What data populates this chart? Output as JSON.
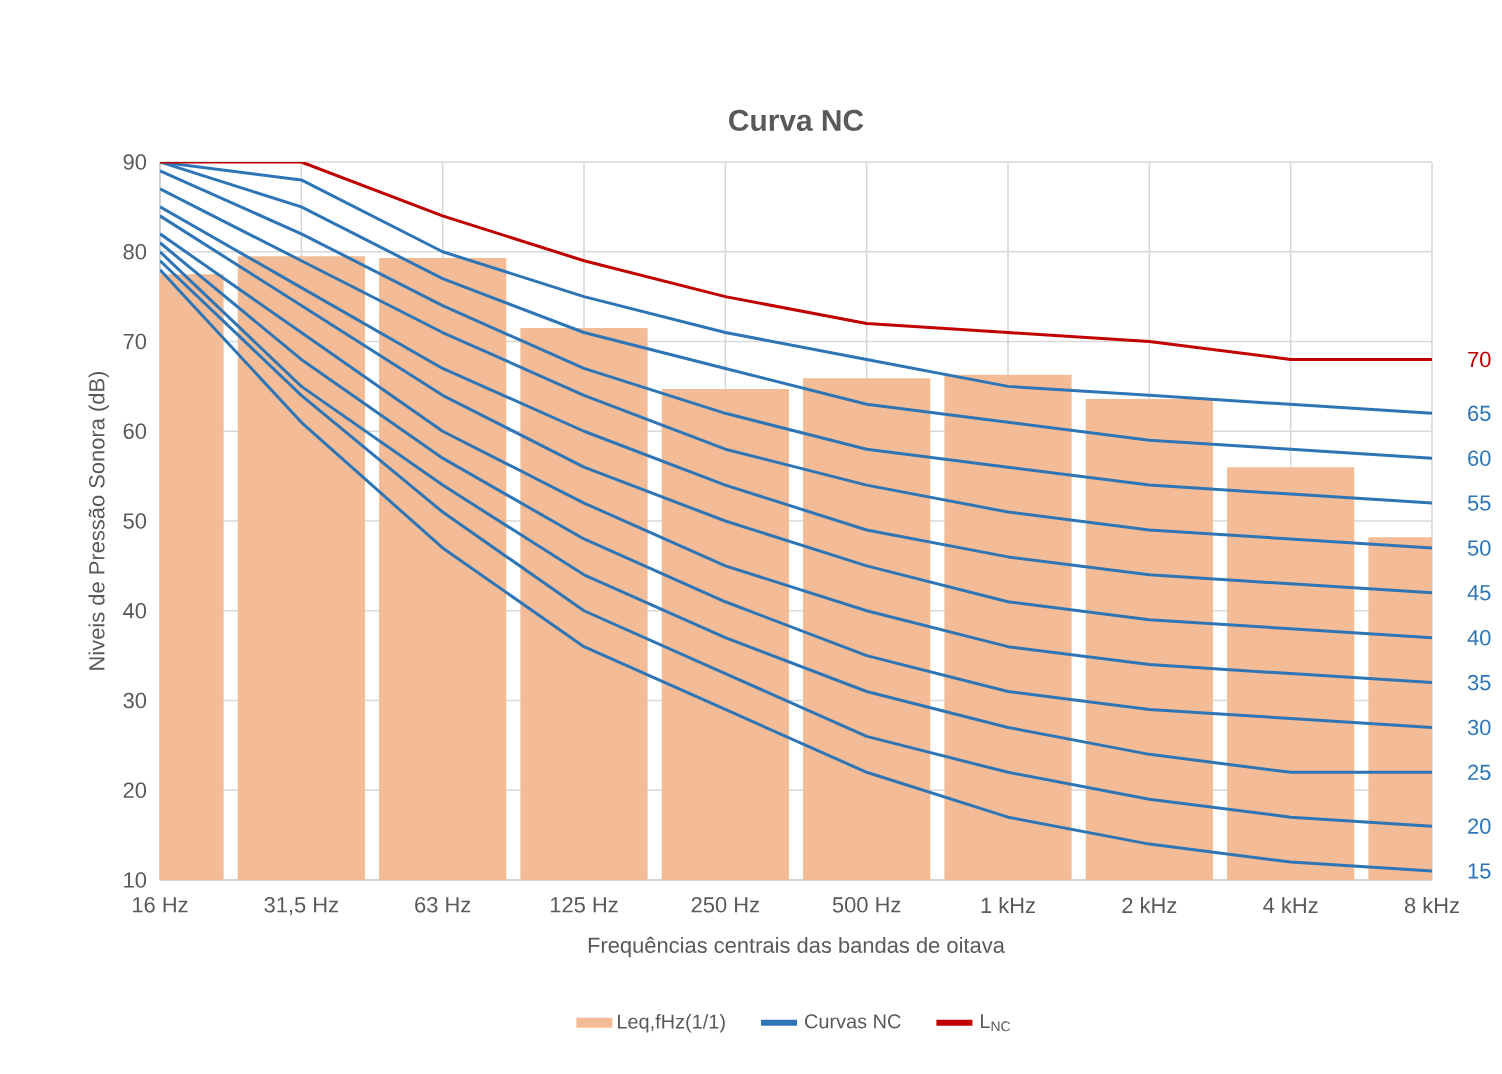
{
  "chart_data": {
    "type": "bar",
    "title": "Curva NC",
    "xlabel": "Frequências centrais das bandas de oitava",
    "ylabel": "Niveis de Pressão Sonora (dB)",
    "categories": [
      "16 Hz",
      "31,5 Hz",
      "63 Hz",
      "125 Hz",
      "250 Hz",
      "500 Hz",
      "1 kHz",
      "2 kHz",
      "4 kHz",
      "8 kHz"
    ],
    "series": [
      {
        "name": "Leq,fHz(1/1)",
        "color": "#f4bc96",
        "values": [
          77.5,
          79.5,
          79.3,
          71.5,
          64.7,
          65.9,
          66.3,
          63.6,
          56.0,
          48.2
        ]
      },
      {
        "name": "Curvas NC",
        "type": "line",
        "color": "#2e75b6",
        "values": [
          78,
          61,
          47,
          36,
          29,
          22,
          17,
          14,
          12,
          11
        ]
      },
      {
        "type": "line",
        "color": "#2e75b6",
        "values": [
          79,
          64,
          51,
          40,
          33,
          26,
          22,
          19,
          17,
          16
        ]
      },
      {
        "type": "line",
        "color": "#2e75b6",
        "values": [
          80,
          65,
          54,
          44,
          37,
          31,
          27,
          24,
          22,
          22
        ]
      },
      {
        "type": "line",
        "color": "#2e75b6",
        "values": [
          81,
          68,
          57,
          48,
          41,
          35,
          31,
          29,
          28,
          27
        ]
      },
      {
        "type": "line",
        "color": "#2e75b6",
        "values": [
          82,
          71,
          60,
          52,
          45,
          40,
          36,
          34,
          33,
          32
        ]
      },
      {
        "type": "line",
        "color": "#2e75b6",
        "values": [
          84,
          74,
          64,
          56,
          50,
          45,
          41,
          39,
          38,
          37
        ]
      },
      {
        "type": "line",
        "color": "#2e75b6",
        "values": [
          85,
          76,
          67,
          60,
          54,
          49,
          46,
          44,
          43,
          42
        ]
      },
      {
        "type": "line",
        "color": "#2e75b6",
        "values": [
          87,
          79,
          71,
          64,
          58,
          54,
          51,
          49,
          48,
          47
        ]
      },
      {
        "type": "line",
        "color": "#2e75b6",
        "values": [
          89,
          82,
          74,
          67,
          62,
          58,
          56,
          54,
          53,
          52
        ]
      },
      {
        "type": "line",
        "color": "#2e75b6",
        "values": [
          90,
          85,
          77,
          71,
          67,
          63,
          61,
          59,
          58,
          57
        ]
      },
      {
        "type": "line",
        "color": "#2e75b6",
        "values": [
          90,
          88,
          80,
          75,
          71,
          68,
          65,
          64,
          63,
          62
        ]
      },
      {
        "name": "L$_{NC}$",
        "type": "line",
        "color": "#c00000",
        "values": [
          90,
          90,
          84,
          79,
          75,
          72,
          71,
          70,
          68,
          68
        ]
      }
    ],
    "annotations": [
      {
        "text": "70",
        "x": "8 kHz",
        "y": 68
      },
      {
        "text": "65",
        "x": "8 kHz",
        "y": 62
      },
      {
        "text": "60",
        "x": "8 kHz",
        "y": 57
      },
      {
        "text": "55",
        "x": "8 kHz",
        "y": 52
      },
      {
        "text": "50",
        "x": "8 kHz",
        "y": 47
      },
      {
        "text": "45",
        "x": "8 kHz",
        "y": 42
      },
      {
        "text": "40",
        "x": "8 kHz",
        "y": 37
      },
      {
        "text": "35",
        "x": "8 kHz",
        "y": 32
      },
      {
        "text": "30",
        "x": "8 kHz",
        "y": 27
      },
      {
        "text": "25",
        "x": "8 kHz",
        "y": 22
      },
      {
        "text": "20",
        "x": "8 kHz",
        "y": 16
      },
      {
        "text": "15",
        "x": "8 kHz",
        "y": 11
      }
    ],
    "ylim": [
      10,
      90
    ],
    "yticks": [
      10,
      20,
      30,
      40,
      50,
      60,
      70,
      80,
      90
    ],
    "grid": true,
    "legend": "bottom"
  }
}
